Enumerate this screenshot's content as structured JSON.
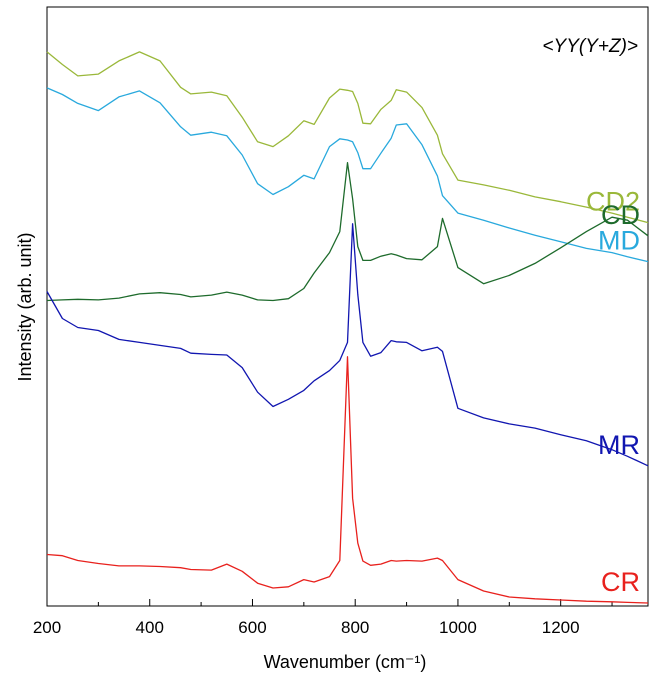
{
  "chart_data": {
    "type": "line",
    "title": "",
    "xlabel": "Wavenumber (cm⁻¹)",
    "ylabel": "Intensity (arb. unit)",
    "annotation": "<YY(Y+Z)>",
    "xlim": [
      200,
      1370
    ],
    "ylim": [
      0,
      100
    ],
    "xticks": [
      200,
      400,
      600,
      800,
      1000,
      1200
    ],
    "yticks_shown": false,
    "grid": false,
    "legend": "none; series labelled directly on the right",
    "x": [
      200,
      230,
      260,
      300,
      340,
      380,
      420,
      460,
      480,
      520,
      550,
      580,
      610,
      640,
      670,
      700,
      720,
      750,
      770,
      785,
      795,
      805,
      815,
      830,
      850,
      870,
      880,
      900,
      930,
      960,
      970,
      1000,
      1050,
      1100,
      1150,
      1200,
      1250,
      1300,
      1330,
      1370
    ],
    "series": [
      {
        "name": "CD2",
        "color": "#9ab83a",
        "values": [
          92.5,
          90.4,
          88.5,
          88.8,
          91.0,
          92.5,
          91.0,
          86.6,
          85.5,
          85.8,
          85.2,
          81.6,
          77.5,
          76.7,
          78.5,
          81.0,
          80.4,
          84.8,
          86.3,
          86.1,
          85.9,
          83.9,
          80.6,
          80.5,
          82.9,
          84.4,
          86.2,
          85.8,
          83.2,
          78.6,
          75.5,
          71.1,
          70.3,
          69.4,
          68.3,
          67.5,
          66.6,
          65.6,
          64.9,
          64.0
        ]
      },
      {
        "name": "MD",
        "color": "#29a9dd",
        "values": [
          86.5,
          85.4,
          83.9,
          82.7,
          85.0,
          86.0,
          84.0,
          80.0,
          78.6,
          79.1,
          78.5,
          75.3,
          70.5,
          68.7,
          70.0,
          71.9,
          71.3,
          76.7,
          78.0,
          77.8,
          77.5,
          75.7,
          73.0,
          73.0,
          75.6,
          78.1,
          80.3,
          80.5,
          77.0,
          71.8,
          68.5,
          65.6,
          64.4,
          63.1,
          61.9,
          60.8,
          59.7,
          59.0,
          58.3,
          57.5
        ]
      },
      {
        "name": "CD",
        "color": "#1e6b2c",
        "values": [
          51.0,
          51.1,
          51.2,
          51.1,
          51.4,
          52.1,
          52.3,
          52.0,
          51.6,
          51.9,
          52.4,
          51.9,
          51.1,
          51.0,
          51.3,
          53.0,
          55.6,
          59.0,
          62.5,
          74.0,
          68.0,
          60.0,
          57.7,
          57.7,
          58.4,
          58.8,
          58.6,
          58.0,
          57.8,
          60.0,
          64.7,
          56.5,
          53.8,
          55.2,
          57.2,
          59.8,
          62.5,
          64.9,
          64.4,
          61.8
        ]
      },
      {
        "name": "MR",
        "color": "#1116b0",
        "values": [
          52.5,
          48.0,
          46.5,
          46.0,
          44.5,
          44.0,
          43.5,
          43.0,
          42.2,
          42.0,
          41.9,
          39.8,
          35.7,
          33.3,
          34.5,
          36.0,
          37.6,
          39.3,
          41.0,
          44.0,
          63.8,
          52.0,
          44.0,
          41.7,
          42.3,
          44.3,
          44.1,
          44.0,
          42.6,
          43.2,
          42.5,
          33.0,
          31.4,
          30.4,
          29.7,
          28.6,
          27.6,
          26.1,
          25.0,
          23.4
        ]
      },
      {
        "name": "CR",
        "color": "#e8211d",
        "values": [
          8.6,
          8.4,
          7.6,
          7.1,
          6.7,
          6.7,
          6.6,
          6.4,
          6.1,
          6.0,
          7.0,
          5.8,
          3.8,
          3.0,
          3.2,
          4.4,
          4.0,
          4.9,
          7.6,
          41.6,
          18.0,
          10.5,
          7.5,
          6.8,
          7.0,
          7.6,
          7.5,
          7.6,
          7.5,
          8.0,
          7.6,
          4.4,
          2.5,
          1.5,
          1.2,
          1.0,
          0.8,
          0.7,
          0.6,
          0.5
        ]
      }
    ]
  }
}
